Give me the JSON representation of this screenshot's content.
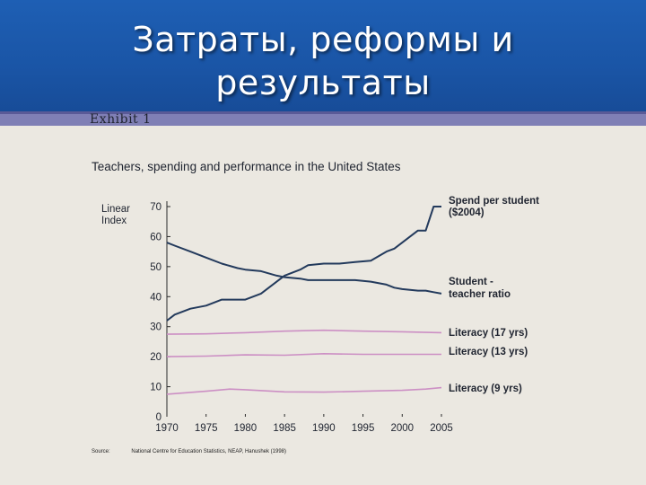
{
  "slide": {
    "title_line1": "Затраты, реформы и",
    "title_line2": "результаты",
    "exhibit": "Exhibit 1",
    "source_label": "Source:",
    "source_text": "National Centre for Education Statistics, NEAP, Hanushek (1998)"
  },
  "colors": {
    "header_blue": "#1a55a6",
    "band_purple": "#7f7fb5",
    "dark_navy_series": "#233a5c",
    "pink_series": "#cc8fc4",
    "background": "#ebe8e1"
  },
  "chart_data": {
    "type": "line",
    "title": "Teachers, spending and performance in the United States",
    "ylabel": "Linear Index",
    "xlabel": "",
    "xlim": [
      1970,
      2005
    ],
    "ylim": [
      0,
      70
    ],
    "x_ticks": [
      "1970",
      "1975",
      "1980",
      "1985",
      "1990",
      "1995",
      "2000",
      "2005"
    ],
    "y_ticks": [
      "0",
      "10",
      "20",
      "30",
      "40",
      "50",
      "60",
      "70"
    ],
    "grid": false,
    "legend": "labels at right end of lines",
    "series": [
      {
        "name": "Spend per student ($2004)",
        "color": "#233a5c",
        "x": [
          1970,
          1971,
          1973,
          1975,
          1977,
          1979,
          1980,
          1982,
          1984,
          1985,
          1987,
          1988,
          1990,
          1992,
          1994,
          1996,
          1998,
          1999,
          2000,
          2002,
          2003,
          2004,
          2005
        ],
        "y": [
          32,
          34,
          36,
          37,
          39,
          39,
          39,
          41,
          45,
          47,
          49,
          50.5,
          51,
          51,
          51.5,
          52,
          55,
          56,
          58,
          62,
          62,
          70,
          70
        ]
      },
      {
        "name": "Student - teacher ratio",
        "color": "#233a5c",
        "x": [
          1970,
          1971,
          1973,
          1975,
          1977,
          1979,
          1980,
          1982,
          1984,
          1985,
          1987,
          1988,
          1990,
          1992,
          1994,
          1996,
          1998,
          1999,
          2000,
          2002,
          2003,
          2004,
          2005
        ],
        "y": [
          58,
          57,
          55,
          53,
          51,
          49.5,
          49,
          48.5,
          47,
          46.5,
          46,
          45.5,
          45.5,
          45.5,
          45.5,
          45,
          44,
          43,
          42.5,
          42,
          42,
          41.5,
          41
        ]
      },
      {
        "name": "Literacy (17 yrs)",
        "color": "#cc8fc4",
        "x": [
          1970,
          1975,
          1980,
          1985,
          1990,
          1995,
          2000,
          2005
        ],
        "y": [
          27.5,
          27.6,
          28.0,
          28.5,
          28.8,
          28.5,
          28.3,
          28.0
        ]
      },
      {
        "name": "Literacy (13 yrs)",
        "color": "#cc8fc4",
        "x": [
          1970,
          1975,
          1980,
          1985,
          1990,
          1995,
          2000,
          2005
        ],
        "y": [
          20.0,
          20.2,
          20.6,
          20.5,
          21.0,
          20.8,
          20.8,
          20.8
        ]
      },
      {
        "name": "Literacy (9 yrs)",
        "color": "#cc8fc4",
        "x": [
          1970,
          1975,
          1978,
          1980,
          1985,
          1990,
          1995,
          2000,
          2003,
          2005
        ],
        "y": [
          7.5,
          8.5,
          9.2,
          9.0,
          8.3,
          8.2,
          8.5,
          8.8,
          9.2,
          9.7
        ]
      }
    ],
    "annotations": [
      {
        "text_lines": [
          "Spend per student",
          "($2004)"
        ],
        "anchor_series": 0
      },
      {
        "text_lines": [
          "Student -",
          "teacher ratio"
        ],
        "anchor_series": 1
      },
      {
        "text_lines": [
          "Literacy (17 yrs)"
        ],
        "anchor_series": 2
      },
      {
        "text_lines": [
          "Literacy (13 yrs)"
        ],
        "anchor_series": 3
      },
      {
        "text_lines": [
          "Literacy (9 yrs)"
        ],
        "anchor_series": 4
      }
    ]
  }
}
